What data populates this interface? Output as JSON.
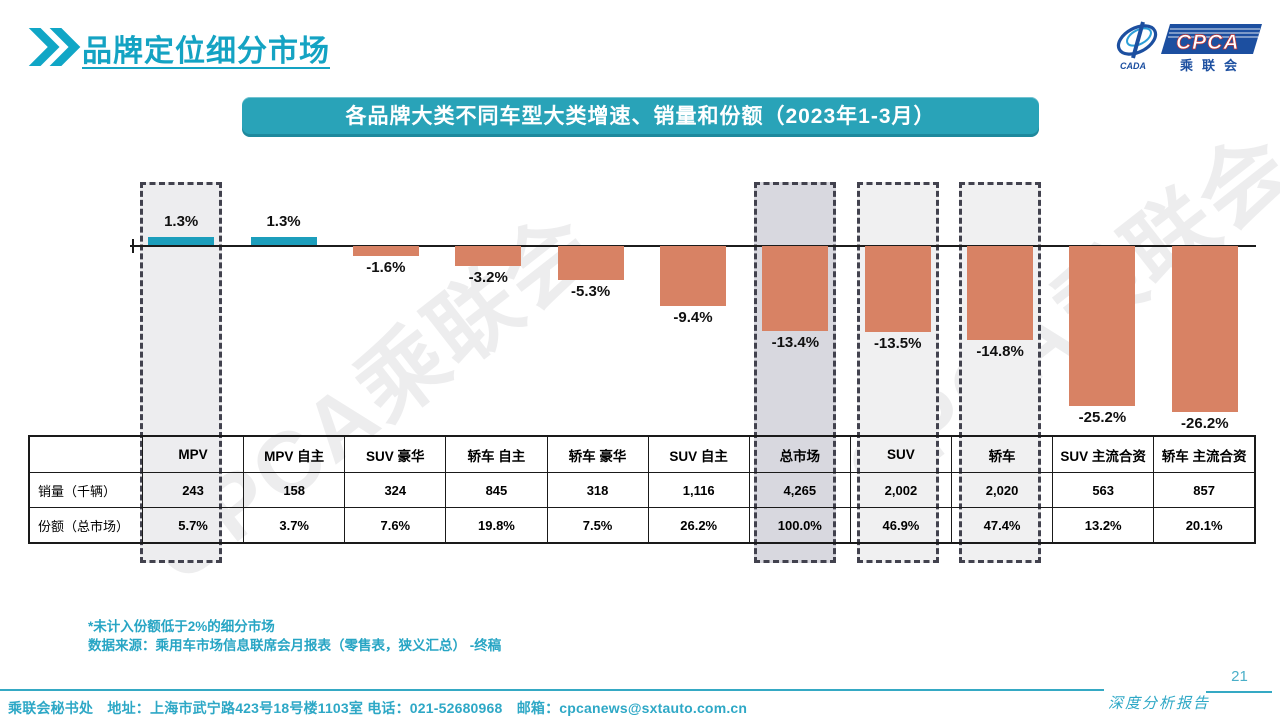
{
  "page": {
    "title": "品牌定位细分市场",
    "page_number": "21",
    "report_label": "深度分析报告"
  },
  "logo": {
    "cpca": "CPCA",
    "cada": "CADA",
    "cn": "乘联会"
  },
  "banner": {
    "text": "各品牌大类不同车型大类增速、销量和份额（2023年1-3月）"
  },
  "watermark": "CPCA乘联会",
  "chart_data": {
    "type": "bar",
    "title": "各品牌大类不同车型大类增速、销量和份额（2023年1-3月）",
    "categories": [
      "MPV",
      "MPV 自主",
      "SUV 豪华",
      "轿车 自主",
      "轿车 豪华",
      "SUV 自主",
      "总市场",
      "SUV",
      "轿车",
      "SUV 主流合资",
      "轿车 主流合资"
    ],
    "values": [
      1.3,
      1.3,
      -1.6,
      -3.2,
      -5.3,
      -9.4,
      -13.4,
      -13.5,
      -14.8,
      -25.2,
      -26.2
    ],
    "value_labels": [
      "1.3%",
      "1.3%",
      "-1.6%",
      "-3.2%",
      "-5.3%",
      "-9.4%",
      "-13.4%",
      "-13.5%",
      "-14.8%",
      "-25.2%",
      "-26.2%"
    ],
    "ylim": [
      -28,
      4
    ],
    "grid": false,
    "legend": "none",
    "bar_colors": {
      "positive": "#1C9EBC",
      "negative": "#D88264"
    },
    "highlights": [
      {
        "category": "MPV",
        "index": 0,
        "fill": "#EDEDEF"
      },
      {
        "category": "总市场",
        "index": 6,
        "fill": "#D8D8DF"
      },
      {
        "category": "SUV",
        "index": 7,
        "fill": "#F0F0F1"
      },
      {
        "category": "轿车",
        "index": 8,
        "fill": "#F0F0F1"
      }
    ],
    "table": {
      "row_headers": [
        "销量（千辆）",
        "份额（总市场）"
      ],
      "rows": [
        [
          "243",
          "158",
          "324",
          "845",
          "318",
          "1,116",
          "4,265",
          "2,002",
          "2,020",
          "563",
          "857"
        ],
        [
          "5.7%",
          "3.7%",
          "7.6%",
          "19.8%",
          "7.5%",
          "26.2%",
          "100.0%",
          "46.9%",
          "47.4%",
          "13.2%",
          "20.1%"
        ]
      ]
    }
  },
  "notes": [
    "*未计入份额低于2%的细分市场",
    "数据来源：乘用车市场信息联席会月报表（零售表，狭义汇总） -终稿"
  ],
  "footer": {
    "text": "乘联会秘书处　地址：上海市武宁路423号18号楼1103室 电话：021-52680968　邮箱：cpcanews@sxtauto.com.cn"
  }
}
